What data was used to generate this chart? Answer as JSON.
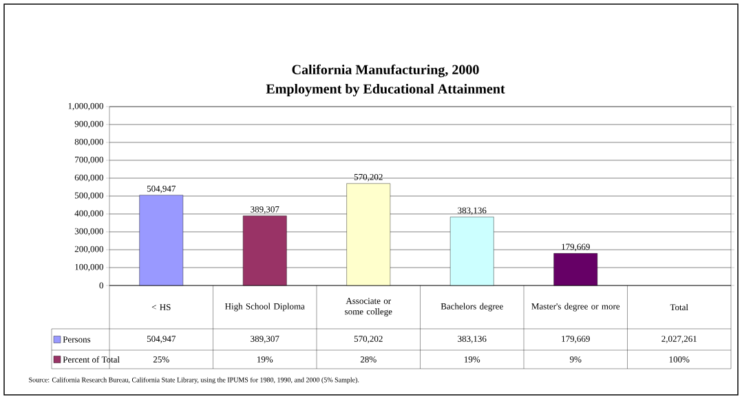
{
  "chart_data": {
    "type": "bar",
    "title": "California Manufacturing, 2000",
    "subtitle": "Employment by Educational Attainment",
    "categories": [
      "< HS",
      "High School Diploma",
      "Associate or some college",
      "Bachelors degree",
      "Master's degree or more",
      "Total"
    ],
    "series": [
      {
        "name": "Persons",
        "color": "#9999ff",
        "colors": [
          "#9999ff",
          "#993366",
          "#ffffcc",
          "#ccffff",
          "#660066",
          "#9999ff"
        ],
        "values": [
          504947,
          389307,
          570202,
          383136,
          179669,
          null
        ],
        "value_labels": [
          "504,947",
          "389,307",
          "570,202",
          "383,136",
          "179,669",
          "2,027,261"
        ]
      },
      {
        "name": "Percent of Total",
        "color": "#993366",
        "values": [
          null,
          null,
          null,
          null,
          null,
          null
        ],
        "value_labels": [
          "25%",
          "19%",
          "28%",
          "19%",
          "9%",
          "100%"
        ]
      }
    ],
    "ylim": [
      0,
      1000000
    ],
    "yticks": [
      0,
      {
        "value": 100000,
        "label": "100,000"
      },
      {
        "value": 200000,
        "label": "200,000"
      },
      {
        "value": 300000,
        "label": "300,000"
      },
      {
        "value": 400000,
        "label": "400,000"
      },
      {
        "value": 500000,
        "label": "500,000"
      },
      {
        "value": 600000,
        "label": "600,000"
      },
      {
        "value": 700000,
        "label": "700,000"
      },
      {
        "value": 800000,
        "label": "800,000"
      },
      {
        "value": 900000,
        "label": "900,000"
      },
      {
        "value": 1000000,
        "label": "1,000,000"
      }
    ],
    "grid": "y",
    "legend": "bottom",
    "annotations": [
      "Source:  California Research Bureau, California State Library, using the IPUMS for 1980, 1990, and 2000 (5% Sample)."
    ]
  }
}
